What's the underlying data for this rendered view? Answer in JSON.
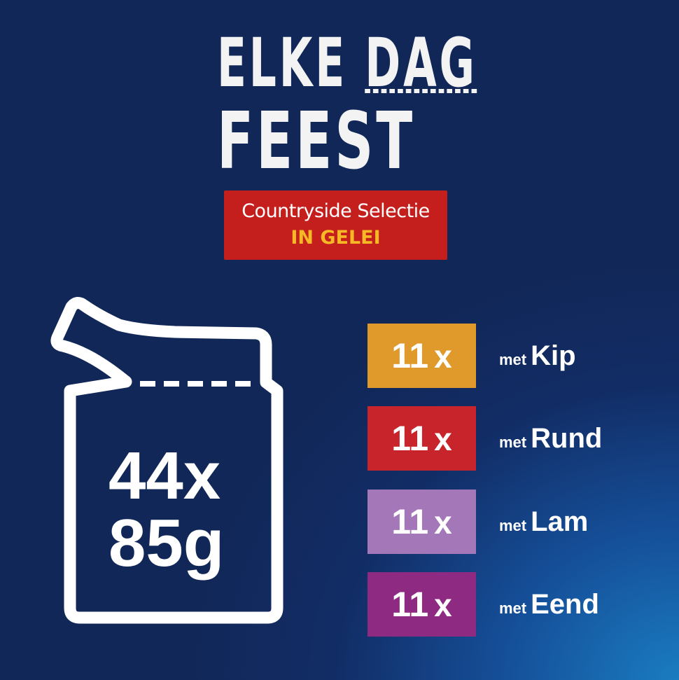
{
  "logo": {
    "line1": "ELKE",
    "line1b": "DAG",
    "line2": "FEEST"
  },
  "banner": {
    "title": "Countryside Selectie",
    "subtitle": "IN GELEI",
    "bg": "#c51f1d",
    "subtitle_color": "#f6b824"
  },
  "pack": {
    "count": "44x",
    "weight": "85g"
  },
  "varieties": [
    {
      "count": "11",
      "x": "x",
      "met": "met",
      "name": "Kip",
      "color": "#e09a2b"
    },
    {
      "count": "11",
      "x": "x",
      "met": "met",
      "name": "Rund",
      "color": "#c8242c"
    },
    {
      "count": "11",
      "x": "x",
      "met": "met",
      "name": "Lam",
      "color": "#a477b8"
    },
    {
      "count": "11",
      "x": "x",
      "met": "met",
      "name": "Eend",
      "color": "#8f2a82"
    }
  ]
}
